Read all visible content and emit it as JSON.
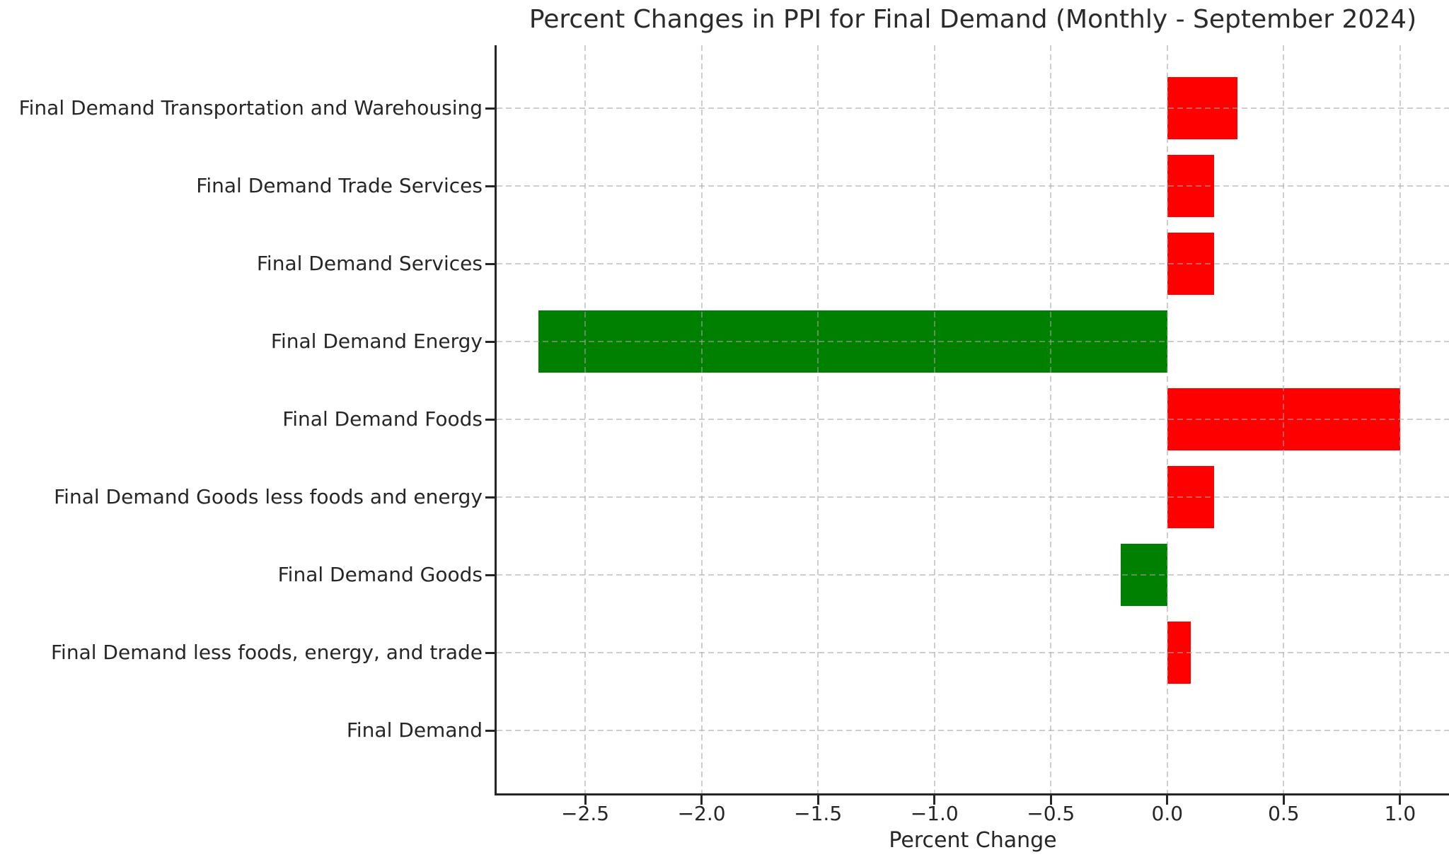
{
  "chart_data": {
    "type": "bar",
    "orientation": "horizontal",
    "title": "Percent Changes in PPI for Final Demand (Monthly - September 2024)",
    "xlabel": "Percent Change",
    "ylabel": "",
    "categories_top_to_bottom": [
      "Final Demand Transportation and Warehousing",
      "Final Demand Trade Services",
      "Final Demand Services",
      "Final Demand Energy",
      "Final Demand Foods",
      "Final Demand Goods less foods and energy",
      "Final Demand Goods",
      "Final Demand less foods, energy, and trade",
      "Final Demand"
    ],
    "values": [
      0.3,
      0.2,
      0.2,
      -2.7,
      1.0,
      0.2,
      -0.2,
      0.1,
      0.0
    ],
    "x_ticks": [
      -2.5,
      -2.0,
      -1.5,
      -1.0,
      -0.5,
      0.0,
      0.5,
      1.0
    ],
    "x_tick_labels": [
      "−2.5",
      "−2.0",
      "−1.5",
      "−1.0",
      "−0.5",
      "0.0",
      "0.5",
      "1.0"
    ],
    "xlim": [
      -2.88,
      1.21
    ],
    "grid": {
      "visible": true,
      "style": "dashed",
      "axis": "both",
      "color": "#c9c9c9",
      "drawn_above_bars": true
    },
    "legend": "none",
    "colors": {
      "positive_bar": "#ff0000",
      "negative_bar": "#008000",
      "spine": "#262626",
      "text": "#262626",
      "background": "#ffffff"
    }
  }
}
